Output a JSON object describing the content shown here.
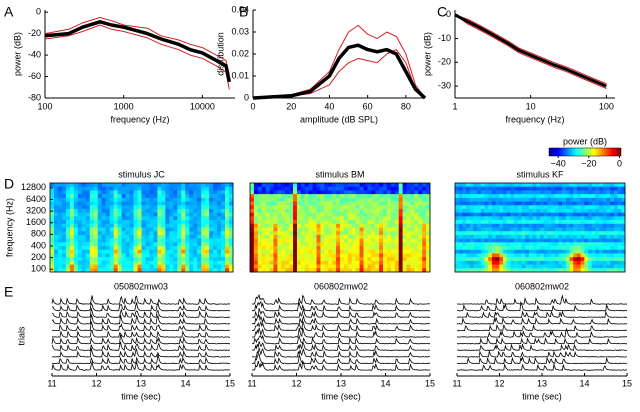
{
  "chart_data": [
    {
      "type": "line",
      "panel_label": "A",
      "xlabel": "frequency (Hz)",
      "ylabel": "power (dB)",
      "log_x": true,
      "x": [
        100,
        200,
        300,
        500,
        700,
        1000,
        2000,
        3000,
        5000,
        7000,
        10000,
        15000,
        20000,
        22000
      ],
      "xlim": [
        100,
        26000
      ],
      "xticks": [
        100,
        1000,
        10000
      ],
      "ylim": [
        -80,
        2
      ],
      "yticks": [
        0,
        -20,
        -40,
        -60,
        -80
      ],
      "series": [
        {
          "color": "#d42020",
          "line_width": 1,
          "values": [
            -20,
            -16,
            -10,
            -5,
            -8,
            -12,
            -15,
            -22,
            -26,
            -30,
            -33,
            -40,
            -45,
            -58
          ]
        },
        {
          "color": "#d42020",
          "line_width": 1,
          "values": [
            -25,
            -22,
            -18,
            -12,
            -16,
            -18,
            -24,
            -30,
            -35,
            -40,
            -43,
            -50,
            -56,
            -72
          ]
        },
        {
          "color": "#000000",
          "line_width": 3.5,
          "values": [
            -22,
            -20,
            -14,
            -9,
            -12,
            -14,
            -20,
            -25,
            -30,
            -35,
            -38,
            -45,
            -50,
            -65
          ]
        }
      ]
    },
    {
      "type": "line",
      "panel_label": "B",
      "xlabel": "amplitude (dB SPL)",
      "ylabel": "distribution",
      "log_x": false,
      "x": [
        0,
        10,
        20,
        30,
        40,
        45,
        50,
        55,
        60,
        65,
        70,
        75,
        80,
        85,
        90
      ],
      "xlim": [
        0,
        90
      ],
      "xticks": [
        0,
        20,
        40,
        60,
        80
      ],
      "ylim": [
        0,
        0.04
      ],
      "yticks": [
        0,
        0.01,
        0.02,
        0.03,
        0.04
      ],
      "series": [
        {
          "color": "#d42020",
          "line_width": 1,
          "values": [
            0,
            0.001,
            0.0015,
            0.004,
            0.012,
            0.022,
            0.03,
            0.033,
            0.029,
            0.027,
            0.03,
            0.028,
            0.02,
            0.006,
            0
          ]
        },
        {
          "color": "#d42020",
          "line_width": 1,
          "values": [
            0,
            0.0005,
            0.001,
            0.002,
            0.006,
            0.012,
            0.016,
            0.018,
            0.017,
            0.016,
            0.02,
            0.022,
            0.016,
            0.004,
            0
          ]
        },
        {
          "color": "#000000",
          "line_width": 3.5,
          "values": [
            0,
            0.0005,
            0.001,
            0.003,
            0.01,
            0.018,
            0.023,
            0.024,
            0.022,
            0.021,
            0.022,
            0.02,
            0.012,
            0.004,
            0
          ]
        }
      ]
    },
    {
      "type": "line",
      "panel_label": "C",
      "xlabel": "frequency (Hz)",
      "ylabel": "power (dB)",
      "log_x": true,
      "x": [
        1,
        1.5,
        2,
        3,
        5,
        7,
        10,
        20,
        30,
        50,
        70,
        100
      ],
      "xlim": [
        1,
        130
      ],
      "xticks": [
        1,
        10,
        100
      ],
      "ylim": [
        -35,
        2
      ],
      "yticks": [
        0,
        -10,
        -20,
        -30
      ],
      "series": [
        {
          "color": "#d42020",
          "line_width": 1,
          "values": [
            0,
            -2,
            -4,
            -7,
            -11,
            -14,
            -16,
            -20,
            -22,
            -25,
            -27,
            -29
          ]
        },
        {
          "color": "#d42020",
          "line_width": 1,
          "values": [
            0,
            -4,
            -6,
            -9,
            -13,
            -16,
            -18,
            -22,
            -24,
            -27,
            -29,
            -31
          ]
        },
        {
          "color": "#000000",
          "line_width": 3,
          "values": [
            0,
            -3,
            -5,
            -8,
            -12,
            -15,
            -17,
            -21,
            -23,
            -26,
            -28,
            -30
          ]
        }
      ]
    },
    {
      "type": "spectrogram",
      "panel_label": "D",
      "ylabel": "frequency (Hz)",
      "log_y": true,
      "ylim": [
        85,
        17000
      ],
      "yticks": [
        100,
        200,
        400,
        800,
        1600,
        3200,
        6400,
        12800
      ],
      "titles": [
        "stimulus JC",
        "stimulus BM",
        "stimulus KF"
      ],
      "colorbar": {
        "title": "power (dB)",
        "lim": [
          -46,
          1
        ],
        "ticks": [
          {
            "value": -40,
            "label": "−40"
          },
          {
            "value": -20,
            "label": "−20"
          },
          0
        ]
      }
    },
    {
      "type": "traces",
      "panel_label": "E",
      "xlabel": "time (sec)",
      "ylabel": "trials",
      "xlim": [
        11,
        15
      ],
      "xticks": [
        11,
        12,
        13,
        14,
        15
      ],
      "titles": [
        "050802mw03",
        "060802mw02",
        "060802mw02"
      ]
    }
  ]
}
